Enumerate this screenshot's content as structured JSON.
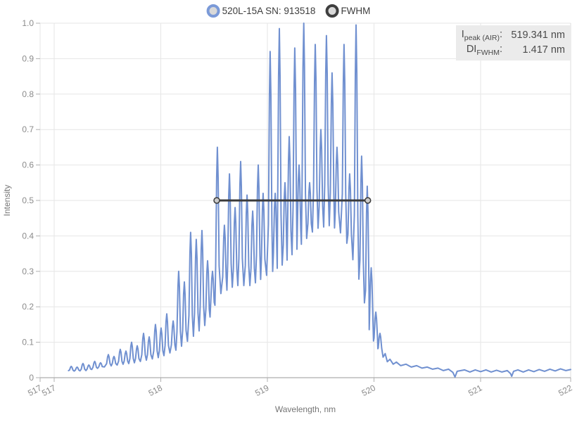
{
  "legend": {
    "items": [
      {
        "label": "520L-15A SN: 913518",
        "ring_color": "#7b9ad8"
      },
      {
        "label": "FWHM",
        "ring_color": "#3f3f3f"
      }
    ],
    "marker_fill": "#d9d9d9"
  },
  "info_box": {
    "bg": "#ebebeb",
    "rows": [
      {
        "pre": "I",
        "sub": "peak (AIR)",
        "post": ":",
        "value": "519.341 nm"
      },
      {
        "pre": "DI",
        "sub": "FWHM",
        "post": ":",
        "value": "1.417 nm"
      }
    ]
  },
  "chart_data": {
    "type": "line",
    "series_name": "520L-15A SN: 913518",
    "xlabel": "Wavelength, nm",
    "ylabel": "Intensity",
    "x_range": [
      516.868,
      521.845
    ],
    "y_range": [
      0,
      1
    ],
    "grid_on": true,
    "line_color": "#7090d0",
    "grid_color": "#e6e6e6",
    "axis_color": "#9a9a9a",
    "tick_color": "#b0b0b0",
    "tick_label_color": "#8b8b8b",
    "axis_title_color": "#757575",
    "x_ticks": [
      {
        "v": 516.868,
        "label": "517"
      },
      {
        "v": 517,
        "label": "517"
      },
      {
        "v": 518,
        "label": "518"
      },
      {
        "v": 519,
        "label": "519"
      },
      {
        "v": 520,
        "label": "520"
      },
      {
        "v": 521,
        "label": "521"
      },
      {
        "v": 521.845,
        "label": "522"
      }
    ],
    "y_ticks": [
      {
        "v": 0,
        "label": "0"
      },
      {
        "v": 0.1,
        "label": "0.1"
      },
      {
        "v": 0.2,
        "label": "0.2"
      },
      {
        "v": 0.3,
        "label": "0.3"
      },
      {
        "v": 0.4,
        "label": "0.4"
      },
      {
        "v": 0.5,
        "label": "0.5"
      },
      {
        "v": 0.6,
        "label": "0.6"
      },
      {
        "v": 0.7,
        "label": "0.7"
      },
      {
        "v": 0.8,
        "label": "0.8"
      },
      {
        "v": 0.9,
        "label": "0.9"
      },
      {
        "v": 1,
        "label": "1.0"
      }
    ],
    "peak": {
      "wavelength_nm": 519.341,
      "intensity": 1.0
    },
    "fwhm": {
      "y": 0.5,
      "x1": 518.525,
      "x2": 519.942,
      "width_nm": 1.417,
      "color": "#3a3a3a",
      "marker_fill": "#c9c9c9"
    },
    "curve_start": [
      517.135,
      0.02
    ],
    "modes": [
      [
        517.16,
        0.032
      ],
      [
        517.215,
        0.03
      ],
      [
        517.27,
        0.04
      ],
      [
        517.325,
        0.036
      ],
      [
        517.38,
        0.046
      ],
      [
        517.435,
        0.042
      ],
      [
        517.508,
        0.065
      ],
      [
        517.561,
        0.06
      ],
      [
        517.62,
        0.08
      ],
      [
        517.673,
        0.075
      ],
      [
        517.726,
        0.1
      ],
      [
        517.779,
        0.09
      ],
      [
        517.838,
        0.125
      ],
      [
        517.891,
        0.115
      ],
      [
        517.95,
        0.15
      ],
      [
        518.003,
        0.14
      ],
      [
        518.056,
        0.18
      ],
      [
        518.116,
        0.16
      ],
      [
        518.168,
        0.3
      ],
      [
        518.221,
        0.27
      ],
      [
        518.28,
        0.41
      ],
      [
        518.333,
        0.39
      ],
      [
        518.386,
        0.415
      ],
      [
        518.439,
        0.33
      ],
      [
        518.485,
        0.3
      ],
      [
        518.531,
        0.65
      ],
      [
        518.597,
        0.43
      ],
      [
        518.644,
        0.575
      ],
      [
        518.697,
        0.48
      ],
      [
        518.749,
        0.61
      ],
      [
        518.809,
        0.515
      ],
      [
        518.862,
        0.47
      ],
      [
        518.914,
        0.6
      ],
      [
        518.96,
        0.52
      ],
      [
        519.026,
        0.92
      ],
      [
        519.073,
        0.52
      ],
      [
        519.112,
        0.985
      ],
      [
        519.165,
        0.55
      ],
      [
        519.205,
        0.68
      ],
      [
        519.257,
        0.93
      ],
      [
        519.297,
        0.6
      ],
      [
        519.341,
        1.0
      ],
      [
        519.396,
        0.55
      ],
      [
        519.449,
        0.94
      ],
      [
        519.502,
        0.7
      ],
      [
        519.554,
        0.965
      ],
      [
        519.607,
        0.86
      ],
      [
        519.653,
        0.65
      ],
      [
        519.719,
        0.94
      ],
      [
        519.772,
        0.575
      ],
      [
        519.832,
        0.995
      ],
      [
        519.884,
        0.625
      ],
      [
        519.937,
        0.54
      ],
      [
        519.974,
        0.31
      ],
      [
        520.017,
        0.185
      ],
      [
        520.056,
        0.125
      ]
    ],
    "baseline": [
      [
        517.13,
        0.018
      ],
      [
        517.3,
        0.02
      ],
      [
        517.5,
        0.032
      ],
      [
        517.75,
        0.042
      ],
      [
        518.0,
        0.058
      ],
      [
        518.16,
        0.08
      ],
      [
        518.3,
        0.115
      ],
      [
        518.44,
        0.155
      ],
      [
        518.55,
        0.235
      ],
      [
        518.7,
        0.26
      ],
      [
        518.85,
        0.26
      ],
      [
        519.0,
        0.29
      ],
      [
        519.15,
        0.32
      ],
      [
        519.3,
        0.37
      ],
      [
        519.45,
        0.42
      ],
      [
        519.6,
        0.43
      ],
      [
        519.72,
        0.4
      ],
      [
        519.83,
        0.31
      ],
      [
        519.9,
        0.23
      ],
      [
        519.95,
        0.14
      ],
      [
        520.0,
        0.1
      ],
      [
        520.06,
        0.07
      ],
      [
        520.09,
        0.055
      ]
    ],
    "tail": [
      [
        520.085,
        0.058
      ],
      [
        520.105,
        0.068
      ],
      [
        520.125,
        0.045
      ],
      [
        520.15,
        0.052
      ],
      [
        520.18,
        0.038
      ],
      [
        520.21,
        0.044
      ],
      [
        520.25,
        0.034
      ],
      [
        520.3,
        0.038
      ],
      [
        520.35,
        0.03
      ],
      [
        520.4,
        0.034
      ],
      [
        520.45,
        0.027
      ],
      [
        520.5,
        0.03
      ],
      [
        520.55,
        0.024
      ],
      [
        520.6,
        0.027
      ],
      [
        520.65,
        0.02
      ],
      [
        520.7,
        0.024
      ],
      [
        520.74,
        0.015
      ],
      [
        520.76,
        0.002
      ],
      [
        520.78,
        0.018
      ],
      [
        520.85,
        0.022
      ],
      [
        520.9,
        0.016
      ],
      [
        520.95,
        0.022
      ],
      [
        521.0,
        0.017
      ],
      [
        521.05,
        0.022
      ],
      [
        521.1,
        0.016
      ],
      [
        521.15,
        0.021
      ],
      [
        521.2,
        0.016
      ],
      [
        521.25,
        0.02
      ],
      [
        521.28,
        0.012
      ],
      [
        521.292,
        0.004
      ],
      [
        521.31,
        0.018
      ],
      [
        521.35,
        0.022
      ],
      [
        521.4,
        0.016
      ],
      [
        521.45,
        0.022
      ],
      [
        521.5,
        0.017
      ],
      [
        521.55,
        0.023
      ],
      [
        521.6,
        0.018
      ],
      [
        521.65,
        0.024
      ],
      [
        521.7,
        0.019
      ],
      [
        521.75,
        0.025
      ],
      [
        521.8,
        0.02
      ],
      [
        521.845,
        0.023
      ]
    ]
  }
}
